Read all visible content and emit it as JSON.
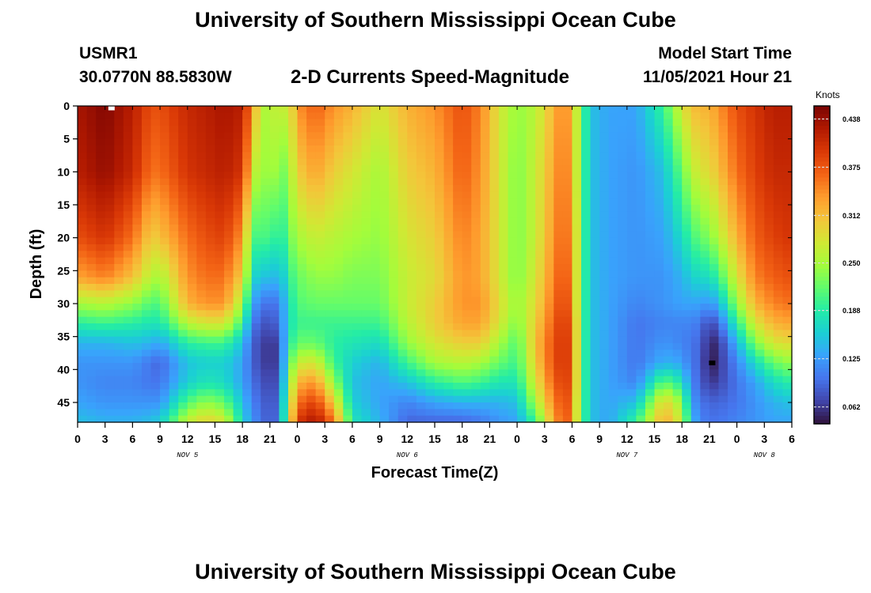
{
  "header": {
    "title": "University of Southern Mississippi Ocean Cube",
    "station": "USMR1",
    "coords": "30.0770N  88.5830W",
    "subtitle": "2-D Currents Speed-Magnitude",
    "model_start_label": "Model Start Time",
    "model_start_value": "11/05/2021 Hour 21"
  },
  "footer": {
    "title": "University of Southern Mississippi Ocean Cube"
  },
  "chart_data": {
    "type": "heatmap",
    "title": "2-D Currents Speed-Magnitude",
    "xlabel": "Forecast Time(Z)",
    "ylabel": "Depth (ft)",
    "x_range_hours": [
      0,
      78
    ],
    "x_tick_labels": [
      "0",
      "3",
      "6",
      "9",
      "12",
      "15",
      "18",
      "21",
      "0",
      "3",
      "6",
      "9",
      "12",
      "15",
      "18",
      "21",
      "0",
      "3",
      "6",
      "9",
      "12",
      "15",
      "18",
      "21",
      "0",
      "3",
      "6"
    ],
    "date_labels": [
      {
        "hour": 12,
        "text": "NOV 5"
      },
      {
        "hour": 36,
        "text": "NOV 6"
      },
      {
        "hour": 60,
        "text": "NOV 7"
      },
      {
        "hour": 75,
        "text": "NOV 8"
      }
    ],
    "y_range_ft": [
      0,
      48
    ],
    "y_ticks": [
      0,
      5,
      10,
      15,
      20,
      25,
      30,
      35,
      40,
      45
    ],
    "colorbar": {
      "unit": "Knots",
      "range": [
        0.04,
        0.455
      ],
      "ticks": [
        "0.438",
        "0.375",
        "0.312",
        "0.250",
        "0.188",
        "0.125",
        "0.062"
      ]
    },
    "depth_profile_ft": [
      0,
      10,
      20,
      26,
      30,
      33,
      36,
      39,
      42,
      45,
      48
    ],
    "time_columns_hours": [
      0,
      3,
      6,
      8,
      9,
      12,
      14,
      16,
      18,
      19,
      20,
      21,
      22,
      23,
      24,
      26,
      28,
      30,
      33,
      36,
      39,
      42,
      44,
      46,
      48,
      50,
      52,
      53,
      54,
      54.5,
      55,
      56,
      58,
      61,
      64,
      66,
      67,
      68,
      69,
      70,
      72,
      74,
      76,
      78
    ],
    "speed_knots_by_time": [
      [
        0.43,
        0.42,
        0.38,
        0.33,
        0.25,
        0.19,
        0.14,
        0.12,
        0.12,
        0.13,
        0.15
      ],
      [
        0.45,
        0.44,
        0.4,
        0.35,
        0.26,
        0.2,
        0.14,
        0.12,
        0.11,
        0.12,
        0.14
      ],
      [
        0.42,
        0.41,
        0.36,
        0.31,
        0.24,
        0.19,
        0.15,
        0.12,
        0.11,
        0.12,
        0.14
      ],
      [
        0.38,
        0.36,
        0.3,
        0.26,
        0.21,
        0.18,
        0.14,
        0.1,
        0.1,
        0.12,
        0.15
      ],
      [
        0.38,
        0.36,
        0.31,
        0.25,
        0.21,
        0.18,
        0.13,
        0.09,
        0.1,
        0.12,
        0.16
      ],
      [
        0.41,
        0.4,
        0.36,
        0.34,
        0.32,
        0.26,
        0.19,
        0.15,
        0.16,
        0.21,
        0.27
      ],
      [
        0.42,
        0.41,
        0.38,
        0.36,
        0.34,
        0.28,
        0.2,
        0.16,
        0.18,
        0.24,
        0.3
      ],
      [
        0.43,
        0.42,
        0.39,
        0.36,
        0.34,
        0.28,
        0.2,
        0.16,
        0.17,
        0.22,
        0.28
      ],
      [
        0.42,
        0.4,
        0.34,
        0.3,
        0.25,
        0.2,
        0.15,
        0.13,
        0.13,
        0.15,
        0.17
      ],
      [
        0.35,
        0.3,
        0.22,
        0.18,
        0.14,
        0.11,
        0.09,
        0.09,
        0.1,
        0.11,
        0.12
      ],
      [
        0.26,
        0.22,
        0.19,
        0.14,
        0.1,
        0.08,
        0.07,
        0.07,
        0.08,
        0.09,
        0.1
      ],
      [
        0.25,
        0.27,
        0.22,
        0.16,
        0.1,
        0.08,
        0.06,
        0.06,
        0.07,
        0.08,
        0.08
      ],
      [
        0.28,
        0.22,
        0.17,
        0.13,
        0.1,
        0.09,
        0.07,
        0.07,
        0.08,
        0.09,
        0.1
      ],
      [
        0.26,
        0.24,
        0.22,
        0.19,
        0.17,
        0.17,
        0.18,
        0.2,
        0.22,
        0.24,
        0.25
      ],
      [
        0.34,
        0.3,
        0.25,
        0.22,
        0.21,
        0.2,
        0.22,
        0.27,
        0.32,
        0.36,
        0.4
      ],
      [
        0.37,
        0.33,
        0.27,
        0.24,
        0.22,
        0.2,
        0.22,
        0.28,
        0.34,
        0.39,
        0.43
      ],
      [
        0.34,
        0.3,
        0.26,
        0.24,
        0.22,
        0.2,
        0.19,
        0.2,
        0.24,
        0.3,
        0.36
      ],
      [
        0.32,
        0.28,
        0.25,
        0.23,
        0.22,
        0.2,
        0.18,
        0.16,
        0.15,
        0.16,
        0.18
      ],
      [
        0.28,
        0.25,
        0.24,
        0.23,
        0.22,
        0.2,
        0.17,
        0.14,
        0.13,
        0.13,
        0.14
      ],
      [
        0.32,
        0.3,
        0.28,
        0.27,
        0.27,
        0.26,
        0.24,
        0.2,
        0.15,
        0.11,
        0.09
      ],
      [
        0.34,
        0.32,
        0.3,
        0.29,
        0.3,
        0.3,
        0.28,
        0.25,
        0.19,
        0.13,
        0.09
      ],
      [
        0.38,
        0.37,
        0.35,
        0.34,
        0.34,
        0.33,
        0.3,
        0.26,
        0.21,
        0.14,
        0.09
      ],
      [
        0.35,
        0.34,
        0.33,
        0.33,
        0.34,
        0.33,
        0.3,
        0.25,
        0.2,
        0.14,
        0.1
      ],
      [
        0.28,
        0.28,
        0.28,
        0.28,
        0.29,
        0.28,
        0.25,
        0.22,
        0.18,
        0.14,
        0.12
      ],
      [
        0.24,
        0.23,
        0.23,
        0.23,
        0.24,
        0.23,
        0.21,
        0.2,
        0.18,
        0.15,
        0.13
      ],
      [
        0.26,
        0.27,
        0.27,
        0.28,
        0.29,
        0.3,
        0.31,
        0.3,
        0.28,
        0.25,
        0.2
      ],
      [
        0.32,
        0.33,
        0.34,
        0.35,
        0.36,
        0.37,
        0.38,
        0.38,
        0.37,
        0.35,
        0.33
      ],
      [
        0.35,
        0.36,
        0.37,
        0.38,
        0.39,
        0.4,
        0.4,
        0.4,
        0.39,
        0.38,
        0.37
      ],
      [
        0.32,
        0.33,
        0.34,
        0.35,
        0.36,
        0.37,
        0.38,
        0.38,
        0.38,
        0.37,
        0.36
      ],
      [
        0.27,
        0.27,
        0.28,
        0.28,
        0.28,
        0.29,
        0.29,
        0.29,
        0.29,
        0.28,
        0.28
      ],
      [
        0.22,
        0.22,
        0.22,
        0.22,
        0.22,
        0.22,
        0.22,
        0.22,
        0.22,
        0.22,
        0.22
      ],
      [
        0.15,
        0.15,
        0.15,
        0.15,
        0.15,
        0.15,
        0.15,
        0.15,
        0.15,
        0.15,
        0.15
      ],
      [
        0.13,
        0.13,
        0.13,
        0.13,
        0.13,
        0.13,
        0.13,
        0.13,
        0.13,
        0.13,
        0.13
      ],
      [
        0.13,
        0.12,
        0.12,
        0.12,
        0.11,
        0.1,
        0.1,
        0.1,
        0.11,
        0.15,
        0.2
      ],
      [
        0.2,
        0.15,
        0.13,
        0.12,
        0.12,
        0.11,
        0.12,
        0.14,
        0.22,
        0.3,
        0.33
      ],
      [
        0.28,
        0.22,
        0.17,
        0.14,
        0.13,
        0.11,
        0.11,
        0.13,
        0.18,
        0.24,
        0.27
      ],
      [
        0.31,
        0.26,
        0.2,
        0.16,
        0.13,
        0.11,
        0.1,
        0.1,
        0.11,
        0.13,
        0.15
      ],
      [
        0.32,
        0.28,
        0.22,
        0.17,
        0.13,
        0.1,
        0.09,
        0.09,
        0.09,
        0.1,
        0.11
      ],
      [
        0.32,
        0.29,
        0.23,
        0.17,
        0.12,
        0.07,
        0.05,
        0.04,
        0.06,
        0.09,
        0.1
      ],
      [
        0.34,
        0.31,
        0.26,
        0.2,
        0.14,
        0.09,
        0.06,
        0.06,
        0.07,
        0.09,
        0.1
      ],
      [
        0.38,
        0.36,
        0.32,
        0.28,
        0.24,
        0.19,
        0.14,
        0.11,
        0.1,
        0.1,
        0.11
      ],
      [
        0.4,
        0.39,
        0.37,
        0.35,
        0.32,
        0.28,
        0.23,
        0.17,
        0.13,
        0.12,
        0.12
      ],
      [
        0.42,
        0.41,
        0.39,
        0.37,
        0.35,
        0.32,
        0.28,
        0.22,
        0.17,
        0.14,
        0.13
      ],
      [
        0.42,
        0.41,
        0.4,
        0.38,
        0.36,
        0.33,
        0.29,
        0.24,
        0.19,
        0.15,
        0.13
      ]
    ],
    "markers": [
      {
        "hour": 3.7,
        "depth_ft": 0.3,
        "color": "#ffffff",
        "shape": "square"
      },
      {
        "hour": 69.3,
        "depth_ft": 39,
        "color": "#000000",
        "shape": "square"
      }
    ],
    "colorscale": [
      "#30123b",
      "#4145ab",
      "#4675ed",
      "#39a2fc",
      "#1bcfd4",
      "#24eca6",
      "#61fc6c",
      "#a4fc3b",
      "#d1e834",
      "#f3c63a",
      "#fe9b2d",
      "#f36315",
      "#d93806",
      "#b11901",
      "#7a0403"
    ]
  }
}
